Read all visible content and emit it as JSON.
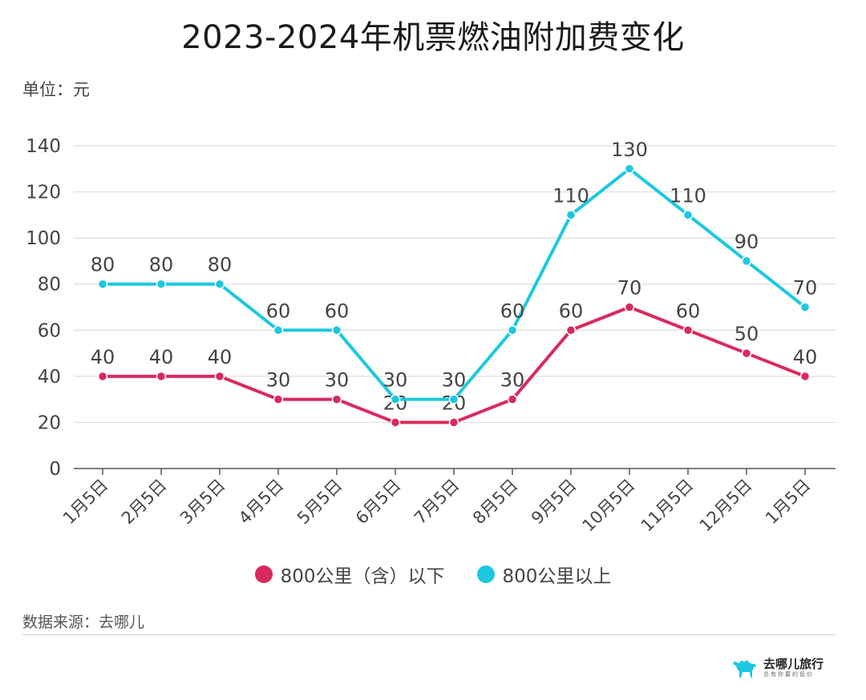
{
  "title": "2023-2024年机票燃油附加费变化",
  "unit_label": "单位：元",
  "source": "数据来源：去哪儿",
  "logo": {
    "name": "去哪儿旅行",
    "slogan": "总有你要的低价"
  },
  "colors": {
    "series_low": "#D92A5E",
    "series_high": "#1CC8E0",
    "grid": "#dddddd",
    "axis": "#555555"
  },
  "chart_data": {
    "type": "line",
    "title": "2023-2024年机票燃油附加费变化",
    "ylabel": "单位：元",
    "xlabel": "",
    "ylim": [
      0,
      140
    ],
    "yticks": [
      0,
      20,
      40,
      60,
      80,
      100,
      120,
      140
    ],
    "grid": true,
    "legend": "bottom",
    "categories": [
      "1月5日",
      "2月5日",
      "3月5日",
      "4月5日",
      "5月5日",
      "6月5日",
      "7月5日",
      "8月5日",
      "9月5日",
      "10月5日",
      "11月5日",
      "12月5日",
      "1月5日"
    ],
    "series": [
      {
        "name": "800公里（含）以下",
        "color": "#D92A5E",
        "values": [
          40,
          40,
          40,
          30,
          30,
          20,
          20,
          30,
          60,
          70,
          60,
          50,
          40
        ]
      },
      {
        "name": "800公里以上",
        "color": "#1CC8E0",
        "values": [
          80,
          80,
          80,
          60,
          60,
          30,
          30,
          60,
          110,
          130,
          110,
          90,
          70
        ]
      }
    ]
  }
}
